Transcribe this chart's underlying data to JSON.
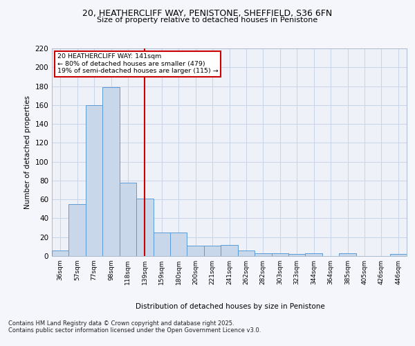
{
  "title1": "20, HEATHERCLIFF WAY, PENISTONE, SHEFFIELD, S36 6FN",
  "title2": "Size of property relative to detached houses in Penistone",
  "xlabel": "Distribution of detached houses by size in Penistone",
  "ylabel": "Number of detached properties",
  "categories": [
    "36sqm",
    "57sqm",
    "77sqm",
    "98sqm",
    "118sqm",
    "139sqm",
    "159sqm",
    "180sqm",
    "200sqm",
    "221sqm",
    "241sqm",
    "262sqm",
    "282sqm",
    "303sqm",
    "323sqm",
    "344sqm",
    "364sqm",
    "385sqm",
    "405sqm",
    "426sqm",
    "446sqm"
  ],
  "values": [
    6,
    55,
    160,
    179,
    78,
    61,
    25,
    25,
    11,
    11,
    12,
    6,
    3,
    3,
    2,
    3,
    0,
    3,
    0,
    0,
    2
  ],
  "bar_color": "#c8d8ea",
  "bar_edge_color": "#5b9bd5",
  "vline_x": 5.0,
  "vline_color": "#cc0000",
  "annotation_line1": "20 HEATHERCLIFF WAY: 141sqm",
  "annotation_line2": "← 80% of detached houses are smaller (479)",
  "annotation_line3": "19% of semi-detached houses are larger (115) →",
  "annotation_box_color": "#cc0000",
  "ylim": [
    0,
    220
  ],
  "yticks": [
    0,
    20,
    40,
    60,
    80,
    100,
    120,
    140,
    160,
    180,
    200,
    220
  ],
  "footer1": "Contains HM Land Registry data © Crown copyright and database right 2025.",
  "footer2": "Contains public sector information licensed under the Open Government Licence v3.0.",
  "bg_color": "#eef2f8",
  "grid_color": "#c8d4e8",
  "fig_bg": "#f4f6fc"
}
